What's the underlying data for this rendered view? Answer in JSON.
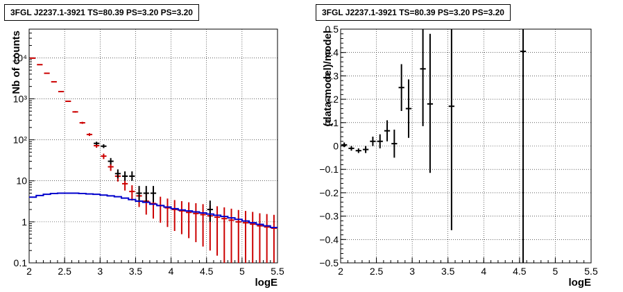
{
  "chart_data": [
    {
      "type": "scatter",
      "title": "3FGL J2237.1-3921 TS=80.39 PS=3.20 PS=3.20",
      "xlabel": "logE",
      "ylabel": "Nb of counts",
      "xlim": [
        2,
        5.5
      ],
      "ylim": [
        0.1,
        50000
      ],
      "yscale": "log",
      "grid": true,
      "x_ticks": [
        "2",
        "2.5",
        "3",
        "3.5",
        "4",
        "4.5",
        "5",
        "5.5"
      ],
      "y_ticks": [
        "0.1",
        "1",
        "10",
        "10²",
        "10³",
        "10⁴"
      ],
      "series": [
        {
          "color": "#cc0000",
          "points": [
            {
              "x": 2.05,
              "y": 9800,
              "lo": 9600,
              "hi": 10000
            },
            {
              "x": 2.15,
              "y": 6800,
              "lo": 6650,
              "hi": 6950
            },
            {
              "x": 2.25,
              "y": 4200,
              "lo": 4100,
              "hi": 4300
            },
            {
              "x": 2.35,
              "y": 2600,
              "lo": 2550,
              "hi": 2650
            },
            {
              "x": 2.45,
              "y": 1500,
              "lo": 1460,
              "hi": 1540
            },
            {
              "x": 2.55,
              "y": 870,
              "lo": 840,
              "hi": 900
            },
            {
              "x": 2.65,
              "y": 480,
              "lo": 460,
              "hi": 500
            },
            {
              "x": 2.75,
              "y": 260,
              "lo": 245,
              "hi": 275
            },
            {
              "x": 2.85,
              "y": 135,
              "lo": 124,
              "hi": 146
            },
            {
              "x": 2.95,
              "y": 72,
              "lo": 64,
              "hi": 80
            },
            {
              "x": 3.05,
              "y": 40,
              "lo": 34,
              "hi": 46
            },
            {
              "x": 3.15,
              "y": 22,
              "lo": 17.5,
              "hi": 26.5
            },
            {
              "x": 3.25,
              "y": 13,
              "lo": 9.6,
              "hi": 16.5
            },
            {
              "x": 3.35,
              "y": 8.5,
              "lo": 5.8,
              "hi": 11.5
            },
            {
              "x": 3.45,
              "y": 5.5,
              "lo": 3.3,
              "hi": 7.8
            },
            {
              "x": 3.55,
              "y": 4.3,
              "lo": 2.3,
              "hi": 6.4
            },
            {
              "x": 3.65,
              "y": 3.2,
              "lo": 1.5,
              "hi": 5.0
            },
            {
              "x": 3.75,
              "y": 2.8,
              "lo": 1.2,
              "hi": 4.5
            },
            {
              "x": 3.85,
              "y": 2.5,
              "lo": 0.95,
              "hi": 4.1
            },
            {
              "x": 3.95,
              "y": 2.2,
              "lo": 0.75,
              "hi": 3.7
            },
            {
              "x": 4.05,
              "y": 2.0,
              "lo": 0.6,
              "hi": 3.4
            },
            {
              "x": 4.15,
              "y": 1.85,
              "lo": 0.5,
              "hi": 3.2
            },
            {
              "x": 4.25,
              "y": 1.7,
              "lo": 0.4,
              "hi": 3.0
            },
            {
              "x": 4.35,
              "y": 1.6,
              "lo": 0.32,
              "hi": 2.85
            },
            {
              "x": 4.45,
              "y": 1.5,
              "lo": 0.25,
              "hi": 2.7
            },
            {
              "x": 4.55,
              "y": 1.4,
              "lo": 0.2,
              "hi": 2.55
            },
            {
              "x": 4.65,
              "y": 1.3,
              "lo": 0.15,
              "hi": 2.4
            },
            {
              "x": 4.75,
              "y": 1.2,
              "lo": 0.1,
              "hi": 2.25
            },
            {
              "x": 4.85,
              "y": 1.1,
              "lo": 0.1,
              "hi": 2.1
            },
            {
              "x": 4.95,
              "y": 1.0,
              "lo": 0.1,
              "hi": 1.95
            },
            {
              "x": 5.05,
              "y": 0.95,
              "lo": 0.1,
              "hi": 1.85
            },
            {
              "x": 5.15,
              "y": 0.88,
              "lo": 0.1,
              "hi": 1.75
            },
            {
              "x": 5.25,
              "y": 0.8,
              "lo": 0.1,
              "hi": 1.62
            },
            {
              "x": 5.35,
              "y": 0.75,
              "lo": 0.1,
              "hi": 1.55
            },
            {
              "x": 5.45,
              "y": 0.7,
              "lo": 0.1,
              "hi": 1.48
            }
          ]
        },
        {
          "color": "#000000",
          "points": [
            {
              "x": 2.95,
              "y": 82,
              "lo": 75,
              "hi": 90
            },
            {
              "x": 3.05,
              "y": 70,
              "lo": 63,
              "hi": 78
            },
            {
              "x": 3.15,
              "y": 30,
              "lo": 25,
              "hi": 36
            },
            {
              "x": 3.25,
              "y": 15,
              "lo": 11.5,
              "hi": 19
            },
            {
              "x": 3.35,
              "y": 13,
              "lo": 10,
              "hi": 17
            },
            {
              "x": 3.45,
              "y": 13,
              "lo": 10,
              "hi": 17
            },
            {
              "x": 3.55,
              "y": 5,
              "lo": 3,
              "hi": 7.5
            },
            {
              "x": 3.65,
              "y": 5,
              "lo": 3,
              "hi": 7.5
            },
            {
              "x": 3.75,
              "y": 5,
              "lo": 3,
              "hi": 7.5
            },
            {
              "x": 4.55,
              "y": 2,
              "lo": 1,
              "hi": 3.3
            }
          ]
        },
        {
          "color": "#0000cc",
          "style": "step",
          "x": [
            2.0,
            2.1,
            2.2,
            2.3,
            2.4,
            2.5,
            2.6,
            2.7,
            2.8,
            2.9,
            3.0,
            3.1,
            3.2,
            3.3,
            3.4,
            3.5,
            3.6,
            3.7,
            3.8,
            3.9,
            4.0,
            4.1,
            4.2,
            4.3,
            4.4,
            4.5,
            4.6,
            4.7,
            4.8,
            4.9,
            5.0,
            5.1,
            5.2,
            5.3,
            5.4,
            5.5
          ],
          "y": [
            4.0,
            4.4,
            4.7,
            4.9,
            5.0,
            5.0,
            5.0,
            4.9,
            4.8,
            4.7,
            4.5,
            4.3,
            4.1,
            3.8,
            3.5,
            3.2,
            3.0,
            2.7,
            2.5,
            2.3,
            2.1,
            1.95,
            1.85,
            1.75,
            1.65,
            1.55,
            1.45,
            1.35,
            1.25,
            1.15,
            1.05,
            0.95,
            0.87,
            0.8,
            0.73,
            0.68
          ]
        }
      ]
    },
    {
      "type": "scatter",
      "title": "3FGL J2237.1-3921 TS=80.39 PS=3.20 PS=3.20",
      "xlabel": "logE",
      "ylabel": "(data-model)/model",
      "xlim": [
        2,
        5.5
      ],
      "ylim": [
        -0.5,
        0.5
      ],
      "grid": true,
      "x_ticks": [
        "2",
        "2.5",
        "3",
        "3.5",
        "4",
        "4.5",
        "5",
        "5.5"
      ],
      "y_ticks": [
        "−0.5",
        "−0.4",
        "−0.3",
        "−0.2",
        "−0.1",
        "0",
        "0.1",
        "0.2",
        "0.3",
        "0.4",
        "0.5"
      ],
      "series": [
        {
          "color": "#000000",
          "points": [
            {
              "x": 2.05,
              "y": 0.005,
              "lo": -0.005,
              "hi": 0.015
            },
            {
              "x": 2.15,
              "y": -0.01,
              "lo": -0.02,
              "hi": 0.0
            },
            {
              "x": 2.25,
              "y": -0.02,
              "lo": -0.03,
              "hi": -0.01
            },
            {
              "x": 2.35,
              "y": -0.015,
              "lo": -0.03,
              "hi": 0.0
            },
            {
              "x": 2.45,
              "y": 0.02,
              "lo": 0.0,
              "hi": 0.04
            },
            {
              "x": 2.55,
              "y": 0.02,
              "lo": -0.01,
              "hi": 0.05
            },
            {
              "x": 2.65,
              "y": 0.065,
              "lo": 0.02,
              "hi": 0.11
            },
            {
              "x": 2.75,
              "y": 0.01,
              "lo": -0.05,
              "hi": 0.07
            },
            {
              "x": 2.85,
              "y": 0.25,
              "lo": 0.15,
              "hi": 0.35
            },
            {
              "x": 2.95,
              "y": 0.16,
              "lo": 0.035,
              "hi": 0.285
            },
            {
              "x": 3.15,
              "y": 0.33,
              "lo": 0.085,
              "hi": 0.5
            },
            {
              "x": 3.25,
              "y": 0.18,
              "lo": -0.115,
              "hi": 0.48
            },
            {
              "x": 3.55,
              "y": 0.17,
              "lo": -0.36,
              "hi": 0.5
            },
            {
              "x": 4.55,
              "y": 0.405,
              "lo": -0.5,
              "hi": 0.5
            }
          ]
        }
      ]
    }
  ]
}
